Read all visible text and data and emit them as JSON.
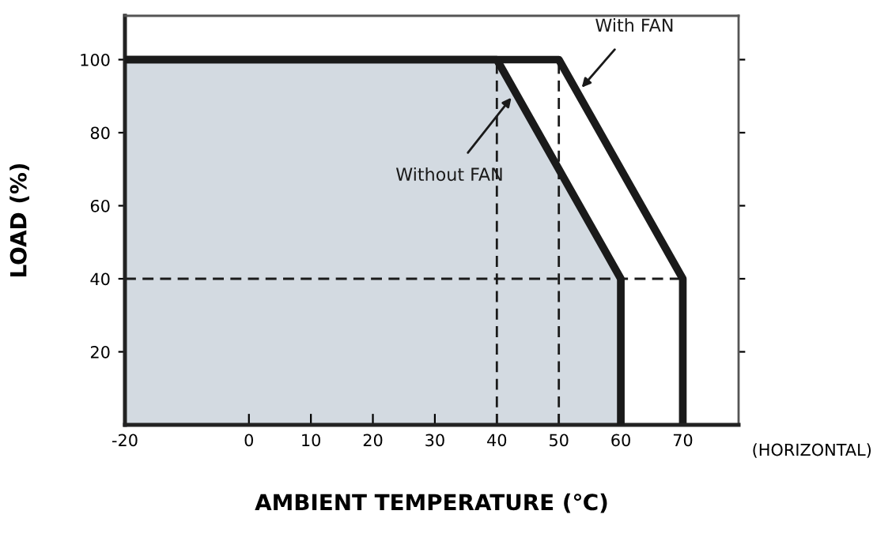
{
  "chart_data": {
    "type": "line",
    "xlabel": "AMBIENT TEMPERATURE (℃)",
    "ylabel": "LOAD (%)",
    "xlim": [
      -20,
      79
    ],
    "ylim": [
      0,
      112
    ],
    "xticks": [
      -20,
      0,
      10,
      20,
      30,
      40,
      50,
      60,
      70
    ],
    "yticks": [
      20,
      40,
      60,
      80,
      100
    ],
    "grid": false,
    "legend": false,
    "series": [
      {
        "type": "area",
        "name": "Without FAN",
        "color": "#1a1a1a",
        "x": [
          -20,
          40,
          60,
          60
        ],
        "values": [
          100,
          100,
          40,
          0
        ]
      },
      {
        "line_style": "dashed",
        "color": "#1a1a1a",
        "x": [
          40,
          40
        ],
        "values": [
          0,
          100
        ]
      },
      {
        "line_style": "dashed",
        "color": "#1a1a1a",
        "x": [
          50,
          50
        ],
        "values": [
          0,
          100
        ]
      },
      {
        "line_style": "dashed",
        "color": "#1a1a1a",
        "x": [
          -20,
          70
        ],
        "values": [
          40,
          40
        ]
      },
      {
        "name": "With FAN",
        "color": "#1a1a1a",
        "x": [
          -20,
          50,
          70,
          70
        ],
        "values": [
          100,
          100,
          40,
          0
        ]
      }
    ],
    "annotations": [
      "(HORIZONTAL)"
    ]
  }
}
